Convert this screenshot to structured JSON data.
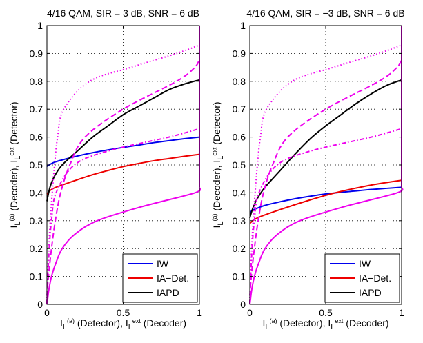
{
  "figure": {
    "left_title": "4/16 QAM, SIR = 3 dB, SNR = 6 dB",
    "right_title": "4/16 QAM, SIR = −3 dB, SNR = 6 dB"
  },
  "colors": {
    "IW": "#0000ee",
    "IA-Det.": "#ee0000",
    "IAPD": "#000000",
    "decoder": "#ee00ee"
  },
  "chart_data": [
    {
      "type": "line",
      "title": "4/16 QAM, SIR = 3 dB, SNR = 6 dB",
      "xlabel": {
        "main": "I",
        "sub1": "L",
        "sup1": "(a)",
        "mid": " (Detector), I",
        "sub2": "L",
        "sup2": "ext",
        "end": " (Decoder)"
      },
      "ylabel": {
        "main": "I",
        "sub1": "L",
        "sup1": "(a)",
        "mid": " (Decoder), I",
        "sub2": "L",
        "sup2": "ext",
        "end": " (Detector)"
      },
      "xlim": [
        0,
        1
      ],
      "ylim": [
        0,
        1
      ],
      "xticks": [
        {
          "v": 0,
          "label": "0"
        },
        {
          "v": 0.5,
          "label": "0.5"
        },
        {
          "v": 1,
          "label": "1"
        }
      ],
      "yticks": [
        {
          "v": 0,
          "label": "0"
        },
        {
          "v": 0.1,
          "label": "0.1"
        },
        {
          "v": 0.2,
          "label": "0.2"
        },
        {
          "v": 0.3,
          "label": "0.3"
        },
        {
          "v": 0.4,
          "label": "0.4"
        },
        {
          "v": 0.5,
          "label": "0.5"
        },
        {
          "v": 0.6,
          "label": "0.6"
        },
        {
          "v": 0.7,
          "label": "0.7"
        },
        {
          "v": 0.8,
          "label": "0.8"
        },
        {
          "v": 0.9,
          "label": "0.9"
        },
        {
          "v": 1,
          "label": "1"
        }
      ],
      "grid": true,
      "legend_position": "bottom-right",
      "legend": [
        "IW",
        "IA−Det.",
        "IAPD"
      ],
      "series": [
        {
          "name": "IW",
          "color": "#0000ee",
          "dash": "solid",
          "axis": "x",
          "x": [
            0,
            0.02,
            0.05,
            0.1,
            0.2,
            0.3,
            0.4,
            0.5,
            0.6,
            0.7,
            0.8,
            0.9,
            1.0
          ],
          "y": [
            0.495,
            0.502,
            0.51,
            0.518,
            0.532,
            0.544,
            0.554,
            0.563,
            0.571,
            0.58,
            0.587,
            0.594,
            0.6
          ]
        },
        {
          "name": "IA−Det.",
          "color": "#ee0000",
          "dash": "solid",
          "axis": "x",
          "x": [
            0,
            0.02,
            0.05,
            0.1,
            0.2,
            0.3,
            0.4,
            0.5,
            0.6,
            0.7,
            0.8,
            0.9,
            1.0
          ],
          "y": [
            0.395,
            0.408,
            0.418,
            0.428,
            0.447,
            0.465,
            0.48,
            0.494,
            0.505,
            0.515,
            0.523,
            0.531,
            0.538
          ]
        },
        {
          "name": "IAPD",
          "color": "#000000",
          "dash": "solid",
          "axis": "x",
          "x": [
            0,
            0.02,
            0.05,
            0.1,
            0.2,
            0.3,
            0.4,
            0.5,
            0.6,
            0.7,
            0.8,
            0.9,
            1.0
          ],
          "y": [
            0.37,
            0.42,
            0.46,
            0.5,
            0.55,
            0.6,
            0.64,
            0.68,
            0.71,
            0.74,
            0.77,
            0.79,
            0.805
          ]
        },
        {
          "name": "",
          "color": "#ee00ee",
          "dash": "solid",
          "axis": "y",
          "y": [
            0,
            0.02,
            0.05,
            0.1,
            0.15,
            0.2,
            0.25,
            0.3,
            0.35,
            0.4,
            0.42
          ],
          "x": [
            0.0,
            0.005,
            0.012,
            0.03,
            0.06,
            0.1,
            0.18,
            0.33,
            0.62,
            0.97,
            1.0
          ]
        },
        {
          "name": "",
          "color": "#ee00ee",
          "dash": "8,4",
          "axis": "y",
          "y": [
            0,
            0.05,
            0.1,
            0.2,
            0.3,
            0.4,
            0.5,
            0.6,
            0.7,
            0.8,
            0.85,
            0.88
          ],
          "x": [
            0.0,
            0.003,
            0.01,
            0.03,
            0.055,
            0.09,
            0.15,
            0.25,
            0.5,
            0.85,
            0.97,
            1.0
          ]
        },
        {
          "name": "",
          "color": "#ee00ee",
          "dash": "6,3,1.5,3",
          "axis": "y",
          "y": [
            0,
            0.05,
            0.1,
            0.2,
            0.3,
            0.4,
            0.5,
            0.55,
            0.6,
            0.63
          ],
          "x": [
            0.0,
            0.002,
            0.006,
            0.015,
            0.03,
            0.06,
            0.18,
            0.4,
            0.8,
            1.0
          ]
        },
        {
          "name": "",
          "color": "#ee00ee",
          "dash": "1.5,3",
          "axis": "y",
          "y": [
            0,
            0.05,
            0.1,
            0.2,
            0.3,
            0.4,
            0.5,
            0.6,
            0.7,
            0.8,
            0.85,
            0.9,
            0.93
          ],
          "x": [
            0.0,
            0.002,
            0.005,
            0.012,
            0.022,
            0.035,
            0.05,
            0.07,
            0.11,
            0.28,
            0.55,
            0.85,
            1.0
          ]
        },
        {
          "name": "",
          "color": "#ee00ee",
          "dash": "solid",
          "axis": "y",
          "y": [
            0.42,
            0.6,
            0.8,
            1.0
          ],
          "x": [
            1.0,
            1.0,
            1.0,
            1.0
          ]
        }
      ]
    },
    {
      "type": "line",
      "title": "4/16 QAM, SIR = −3 dB, SNR = 6 dB",
      "xlabel": {
        "main": "I",
        "sub1": "L",
        "sup1": "(a)",
        "mid": " (Detector), I",
        "sub2": "L",
        "sup2": "ext",
        "end": " (Decoder)"
      },
      "ylabel": {
        "main": "I",
        "sub1": "L",
        "sup1": "(a)",
        "mid": " (Decoder), I",
        "sub2": "L",
        "sup2": "ext",
        "end": " (Detector)"
      },
      "xlim": [
        0,
        1
      ],
      "ylim": [
        0,
        1
      ],
      "xticks": [
        {
          "v": 0,
          "label": "0"
        },
        {
          "v": 0.5,
          "label": "0.5"
        },
        {
          "v": 1,
          "label": "1"
        }
      ],
      "yticks": [
        {
          "v": 0,
          "label": "0"
        },
        {
          "v": 0.1,
          "label": "0.1"
        },
        {
          "v": 0.2,
          "label": "0.2"
        },
        {
          "v": 0.3,
          "label": "0.3"
        },
        {
          "v": 0.4,
          "label": "0.4"
        },
        {
          "v": 0.5,
          "label": "0.5"
        },
        {
          "v": 0.6,
          "label": "0.6"
        },
        {
          "v": 0.7,
          "label": "0.7"
        },
        {
          "v": 0.8,
          "label": "0.8"
        },
        {
          "v": 0.9,
          "label": "0.9"
        },
        {
          "v": 1,
          "label": "1"
        }
      ],
      "grid": true,
      "legend_position": "bottom-right",
      "legend": [
        "IW",
        "IA−Det.",
        "IAPD"
      ],
      "series": [
        {
          "name": "IW",
          "color": "#0000ee",
          "dash": "solid",
          "axis": "x",
          "x": [
            0,
            0.02,
            0.05,
            0.1,
            0.2,
            0.3,
            0.4,
            0.5,
            0.6,
            0.7,
            0.8,
            0.9,
            1.0
          ],
          "y": [
            0.33,
            0.338,
            0.345,
            0.355,
            0.368,
            0.379,
            0.388,
            0.396,
            0.402,
            0.407,
            0.412,
            0.416,
            0.42
          ]
        },
        {
          "name": "IA−Det.",
          "color": "#ee0000",
          "dash": "solid",
          "axis": "x",
          "x": [
            0,
            0.02,
            0.05,
            0.1,
            0.2,
            0.3,
            0.4,
            0.5,
            0.6,
            0.7,
            0.8,
            0.9,
            1.0
          ],
          "y": [
            0.29,
            0.3,
            0.31,
            0.321,
            0.34,
            0.358,
            0.375,
            0.391,
            0.405,
            0.417,
            0.428,
            0.437,
            0.445
          ]
        },
        {
          "name": "IAPD",
          "color": "#000000",
          "dash": "solid",
          "axis": "x",
          "x": [
            0,
            0.02,
            0.05,
            0.1,
            0.2,
            0.3,
            0.4,
            0.5,
            0.6,
            0.7,
            0.8,
            0.9,
            1.0
          ],
          "y": [
            0.31,
            0.345,
            0.38,
            0.42,
            0.48,
            0.54,
            0.595,
            0.64,
            0.68,
            0.72,
            0.755,
            0.785,
            0.805
          ]
        },
        {
          "name": "",
          "color": "#ee00ee",
          "dash": "solid",
          "axis": "y",
          "y": [
            0,
            0.02,
            0.05,
            0.1,
            0.15,
            0.2,
            0.25,
            0.3,
            0.35,
            0.4,
            0.42
          ],
          "x": [
            0.0,
            0.005,
            0.012,
            0.03,
            0.06,
            0.1,
            0.18,
            0.33,
            0.62,
            0.97,
            1.0
          ]
        },
        {
          "name": "",
          "color": "#ee00ee",
          "dash": "8,4",
          "axis": "y",
          "y": [
            0,
            0.05,
            0.1,
            0.2,
            0.3,
            0.4,
            0.5,
            0.6,
            0.7,
            0.8,
            0.85,
            0.88
          ],
          "x": [
            0.0,
            0.003,
            0.01,
            0.03,
            0.055,
            0.09,
            0.15,
            0.25,
            0.5,
            0.85,
            0.97,
            1.0
          ]
        },
        {
          "name": "",
          "color": "#ee00ee",
          "dash": "6,3,1.5,3",
          "axis": "y",
          "y": [
            0,
            0.05,
            0.1,
            0.2,
            0.3,
            0.4,
            0.5,
            0.55,
            0.6,
            0.63
          ],
          "x": [
            0.0,
            0.002,
            0.006,
            0.015,
            0.03,
            0.06,
            0.18,
            0.4,
            0.8,
            1.0
          ]
        },
        {
          "name": "",
          "color": "#ee00ee",
          "dash": "1.5,3",
          "axis": "y",
          "y": [
            0,
            0.05,
            0.1,
            0.2,
            0.3,
            0.4,
            0.5,
            0.6,
            0.7,
            0.8,
            0.85,
            0.9,
            0.93
          ],
          "x": [
            0.0,
            0.002,
            0.005,
            0.012,
            0.022,
            0.035,
            0.05,
            0.07,
            0.11,
            0.28,
            0.55,
            0.85,
            1.0
          ]
        },
        {
          "name": "",
          "color": "#ee00ee",
          "dash": "solid",
          "axis": "y",
          "y": [
            0.42,
            0.6,
            0.8,
            1.0
          ],
          "x": [
            1.0,
            1.0,
            1.0,
            1.0
          ]
        }
      ]
    }
  ]
}
